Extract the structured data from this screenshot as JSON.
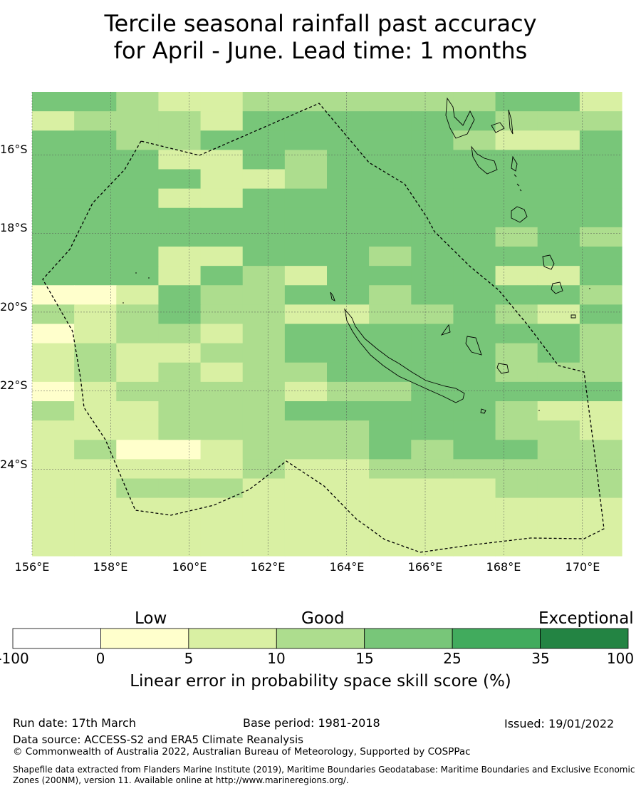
{
  "title": {
    "line1": "Tercile seasonal rainfall past accuracy",
    "line2": "for April - June. Lead time: 1 months"
  },
  "map": {
    "region": "New Caledonia",
    "lon_range": [
      156,
      171
    ],
    "lat_range": [
      -26.2,
      -14.4
    ],
    "lon_ticks": [
      "156°E",
      "158°E",
      "160°E",
      "162°E",
      "164°E",
      "166°E",
      "168°E",
      "170°E"
    ],
    "lat_ticks": [
      "16°S",
      "18°S",
      "20°S",
      "22°S",
      "24°S"
    ],
    "cell_colors": [
      "#ffffff",
      "#ffffcc",
      "#d9f0a3",
      "#addd8e",
      "#78c679",
      "#41ab5d",
      "#238443"
    ],
    "grid": [
      "44322333333442",
      "23332444444333",
      "44334444443224",
      "44422434444444",
      "44442234444444",
      "44422444444444",
      "44444444444444",
      "44444444444343",
      "44422444344444",
      "44424324444224",
      "11243344344443",
      "32343322334324",
      "12332344444443",
      "23223344444343",
      "23232334444333",
      "12333323344444",
      "32233344444322",
      "22233333444332",
      "23112333434433",
      "22222322333333",
      "22333222222333",
      "22222222222222",
      "22222222222222",
      "22222222222222"
    ]
  },
  "legend": {
    "categories": [
      "Low",
      "Good",
      "Exceptional"
    ],
    "ticks": [
      "-100",
      "0",
      "5",
      "10",
      "15",
      "25",
      "35",
      "100"
    ],
    "colors": [
      "#ffffff",
      "#ffffcc",
      "#d9f0a3",
      "#addd8e",
      "#78c679",
      "#41ab5d",
      "#238443"
    ],
    "axis_label": "Linear error in probability space skill score (%)"
  },
  "footer": {
    "run_date": "Run date: 17th March",
    "base_period": "Base period: 1981-2018",
    "issued": "Issued: 19/01/2022",
    "data_source": "Data source: ACCESS-S2 and ERA5 Climate Reanalysis",
    "copyright": "© Commonwealth of Australia 2022, Australian Bureau of Meteorology, Supported by COSPPac",
    "shapefile": "Shapefile data extracted from Flanders Marine Institute (2019), Maritime Boundaries Geodatabase: Maritime Boundaries and Exclusive Economic Zones (200NM), version 11. Available online at http://www.marineregions.org/."
  }
}
